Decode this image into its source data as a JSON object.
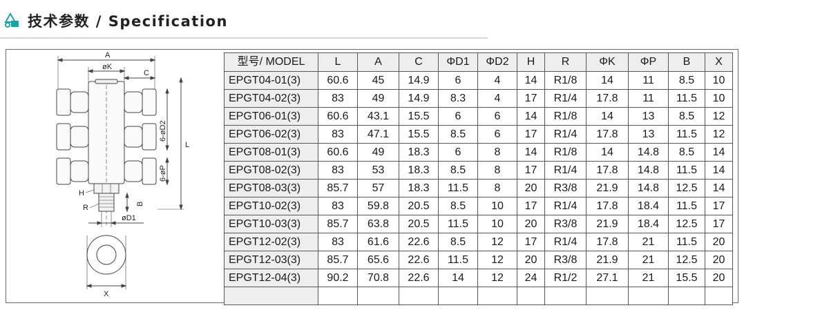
{
  "header": {
    "title": "技术参数 / Specification",
    "logo_icon": "triangle-logo-icon"
  },
  "diagram": {
    "labels": {
      "a": "A",
      "phi_k": "øK",
      "c": "C",
      "d2": "6-øD2",
      "l": "L",
      "p": "6-øP",
      "h": "H",
      "b": "B",
      "r": "R",
      "d1": "øD1",
      "x": "X"
    }
  },
  "table": {
    "headers": [
      "型号/ MODEL",
      "L",
      "A",
      "C",
      "ΦD1",
      "ΦD2",
      "H",
      "R",
      "ΦK",
      "ΦP",
      "B",
      "X"
    ],
    "rows": [
      [
        "EPGT04-01(3)",
        "60.6",
        "45",
        "14.9",
        "6",
        "4",
        "14",
        "R1/8",
        "14",
        "11",
        "8.5",
        "10"
      ],
      [
        "EPGT04-02(3)",
        "83",
        "49",
        "14.9",
        "8.3",
        "4",
        "17",
        "R1/4",
        "17.8",
        "11",
        "11.5",
        "10"
      ],
      [
        "EPGT06-01(3)",
        "60.6",
        "43.1",
        "15.5",
        "6",
        "6",
        "14",
        "R1/8",
        "14",
        "13",
        "8.5",
        "12"
      ],
      [
        "EPGT06-02(3)",
        "83",
        "47.1",
        "15.5",
        "8.5",
        "6",
        "17",
        "R1/4",
        "17.8",
        "13",
        "11.5",
        "12"
      ],
      [
        "EPGT08-01(3)",
        "60.6",
        "49",
        "18.3",
        "6",
        "8",
        "14",
        "R1/8",
        "14",
        "14.8",
        "8.5",
        "14"
      ],
      [
        "EPGT08-02(3)",
        "83",
        "53",
        "18.3",
        "8.5",
        "8",
        "17",
        "R1/4",
        "17.8",
        "14.8",
        "11.5",
        "14"
      ],
      [
        "EPGT08-03(3)",
        "85.7",
        "57",
        "18.3",
        "11.5",
        "8",
        "20",
        "R3/8",
        "21.9",
        "14.8",
        "12.5",
        "14"
      ],
      [
        "EPGT10-02(3)",
        "83",
        "59.8",
        "20.5",
        "8.5",
        "10",
        "17",
        "R1/4",
        "17.8",
        "18.4",
        "11.5",
        "17"
      ],
      [
        "EPGT10-03(3)",
        "85.7",
        "63.8",
        "20.5",
        "11.5",
        "10",
        "20",
        "R3/8",
        "21.9",
        "18.4",
        "12.5",
        "17"
      ],
      [
        "EPGT12-02(3)",
        "83",
        "61.6",
        "22.6",
        "8.5",
        "12",
        "17",
        "R1/4",
        "17.8",
        "21",
        "11.5",
        "20"
      ],
      [
        "EPGT12-03(3)",
        "85.7",
        "65.6",
        "22.6",
        "11.5",
        "12",
        "20",
        "R3/8",
        "21.9",
        "21",
        "12.5",
        "20"
      ],
      [
        "EPGT12-04(3)",
        "90.2",
        "70.8",
        "22.6",
        "14",
        "12",
        "24",
        "R1/2",
        "27.1",
        "21",
        "15.5",
        "20"
      ]
    ]
  }
}
